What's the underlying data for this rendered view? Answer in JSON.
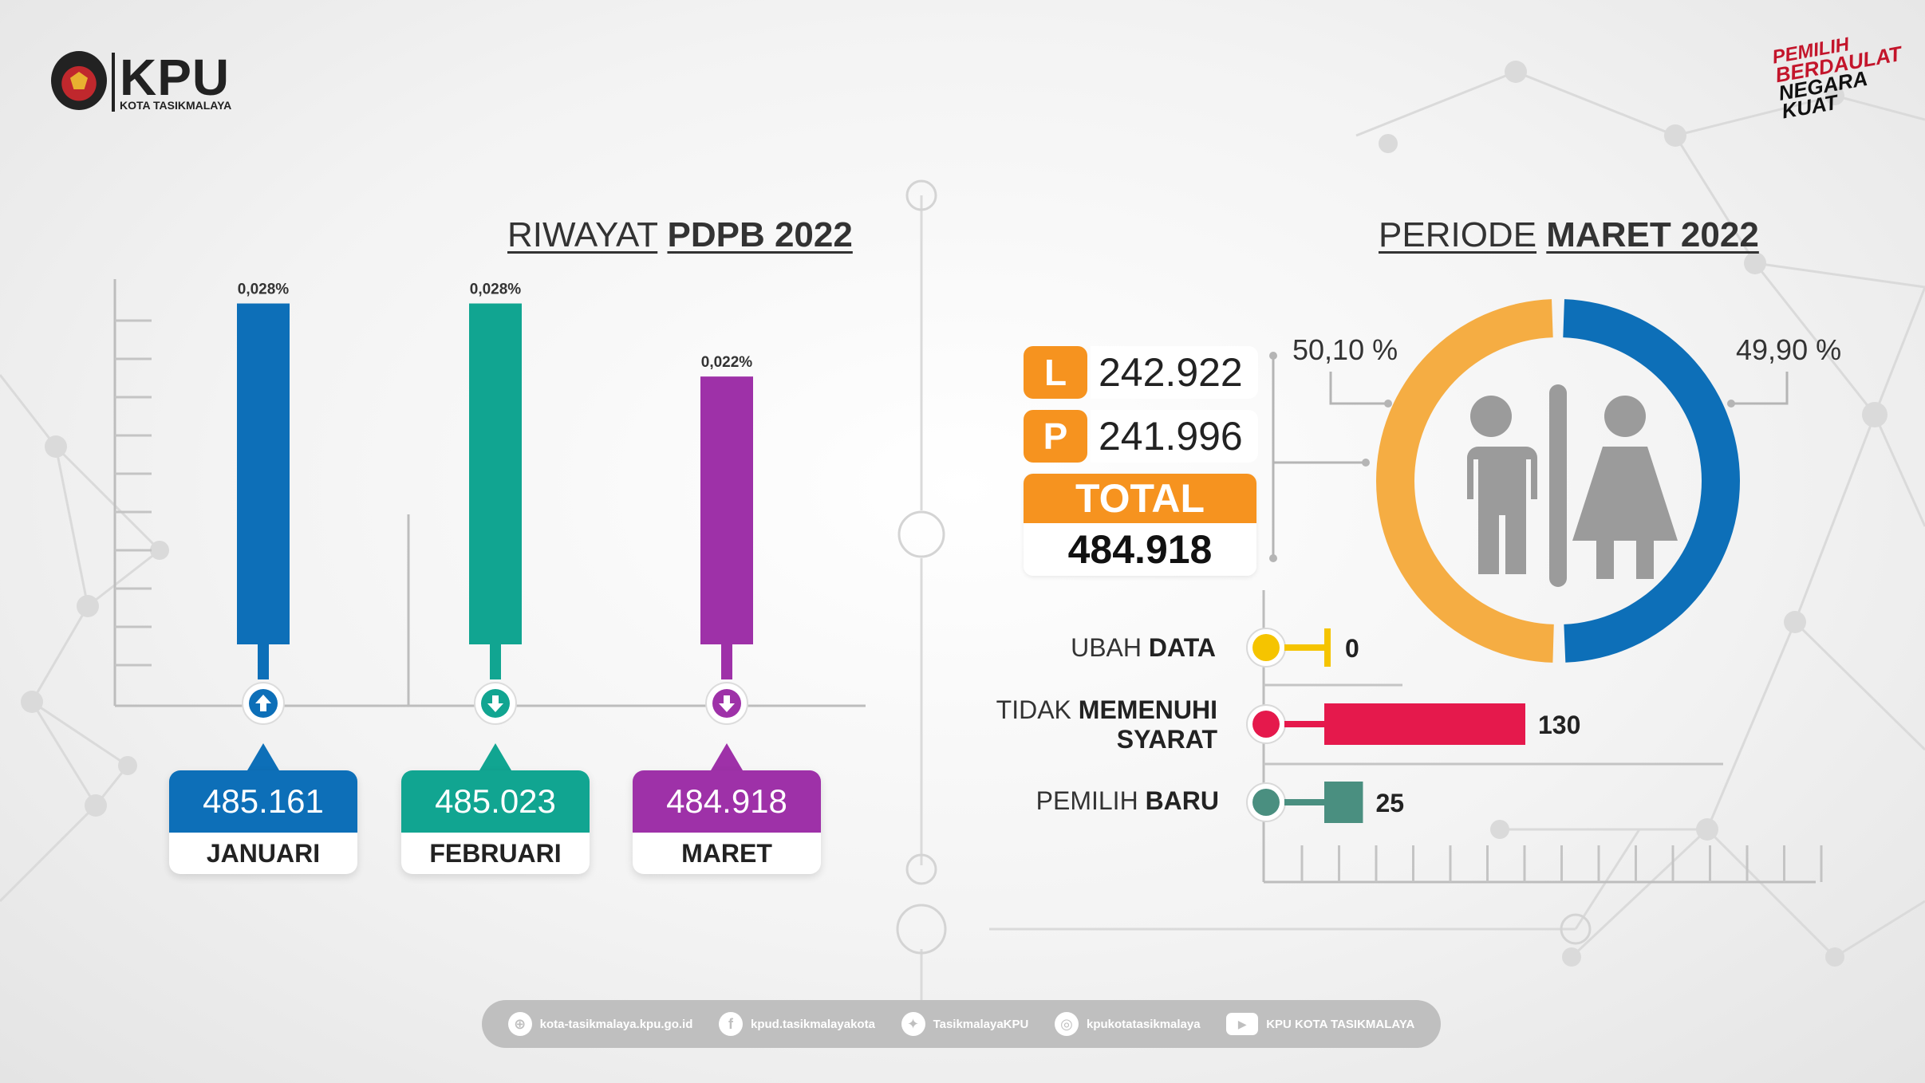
{
  "header": {
    "logo_text": "KPU",
    "logo_subtitle": "KOTA TASIKMALAYA",
    "slogan_lines": [
      "PEMILIH",
      "BERDAULAT",
      "NEGARA",
      "KUAT"
    ]
  },
  "left_section": {
    "title_normal": "RIWAYAT",
    "title_bold": "PDPB 2022"
  },
  "right_section": {
    "title_normal": "PERIODE",
    "title_bold": "MARET 2022"
  },
  "chart_data": [
    {
      "type": "bar",
      "title": "RIWAYAT PDPB 2022",
      "categories": [
        "JANUARI",
        "FEBRUARI",
        "MARET"
      ],
      "values": [
        485161,
        485023,
        484918
      ],
      "value_labels": [
        "485.161",
        "485.023",
        "484.918"
      ],
      "bar_labels": [
        "0,028%",
        "0,028%",
        "0,022%"
      ],
      "bar_percent": [
        0.028,
        0.028,
        0.022
      ],
      "trend": [
        "up",
        "down",
        "down"
      ],
      "colors": [
        "#0d6fb8",
        "#11a591",
        "#9e31a8"
      ],
      "ylim": [
        0,
        0.03
      ],
      "grid": false
    },
    {
      "type": "pie",
      "title": "PERIODE MARET 2022",
      "labels": [
        "L",
        "P"
      ],
      "values": [
        242922,
        241996
      ],
      "value_labels": [
        "242.922",
        "241.996"
      ],
      "percent_labels": [
        "50,10 %",
        "49,90 %"
      ],
      "colors": [
        "#f5ad43",
        "#0d6fb8"
      ],
      "total_label": "TOTAL",
      "total_value": "484.918"
    },
    {
      "type": "bar",
      "orientation": "horizontal",
      "categories": [
        {
          "normal": "UBAH",
          "bold": "DATA"
        },
        {
          "normal": "TIDAK",
          "bold": "MEMENUHI",
          "line2_bold": "SYARAT"
        },
        {
          "normal": "PEMILIH",
          "bold": "BARU"
        }
      ],
      "values": [
        0,
        130,
        25
      ],
      "value_labels": [
        "0",
        "130",
        "25"
      ],
      "colors": [
        "#f5c400",
        "#e5194c",
        "#4a8f80"
      ],
      "xlim": [
        0,
        175
      ],
      "grid": false
    }
  ],
  "footer": {
    "items": [
      {
        "icon": "globe-icon",
        "glyph": "⊕",
        "text": "kota-tasikmalaya.kpu.go.id"
      },
      {
        "icon": "facebook-icon",
        "glyph": "f",
        "text": "kpud.tasikmalayakota"
      },
      {
        "icon": "twitter-icon",
        "glyph": "✦",
        "text": "TasikmalayaKPU"
      },
      {
        "icon": "instagram-icon",
        "glyph": "◎",
        "text": "kpukotatasikmalaya"
      },
      {
        "icon": "youtube-icon",
        "glyph": "▶",
        "text": "KPU KOTA TASIKMALAYA"
      }
    ]
  }
}
